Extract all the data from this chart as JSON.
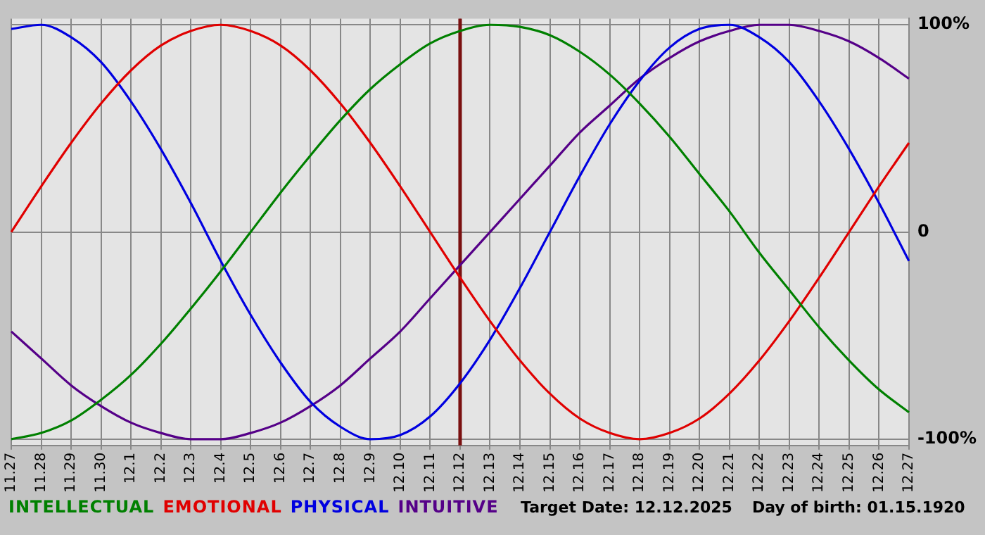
{
  "chart_data": {
    "type": "line",
    "categories": [
      "11.27",
      "11.28",
      "11.29",
      "11.30",
      "12.1",
      "12.2",
      "12.3",
      "12.4",
      "12.5",
      "12.6",
      "12.7",
      "12.8",
      "12.9",
      "12.10",
      "12.11",
      "12.12",
      "12.13",
      "12.14",
      "12.15",
      "12.16",
      "12.17",
      "12.18",
      "12.19",
      "12.20",
      "12.21",
      "12.22",
      "12.23",
      "12.24",
      "12.25",
      "12.26",
      "12.27"
    ],
    "series": [
      {
        "name": "INTELLECTUAL",
        "color": "#008000",
        "values": [
          -100,
          -97,
          -91,
          -81,
          -69,
          -54,
          -37,
          -19,
          0,
          19,
          37,
          54,
          69,
          81,
          91,
          97,
          100,
          99,
          95,
          87,
          76,
          62,
          46,
          28,
          10,
          -10,
          -28,
          -46,
          -62,
          -76,
          -87
        ]
      },
      {
        "name": "EMOTIONAL",
        "color": "#e00000",
        "values": [
          0,
          22,
          43,
          62,
          78,
          90,
          97,
          100,
          97,
          90,
          78,
          62,
          43,
          22,
          0,
          -22,
          -43,
          -62,
          -78,
          -90,
          -97,
          -100,
          -97,
          -90,
          -78,
          -62,
          -43,
          -22,
          0,
          22,
          43
        ]
      },
      {
        "name": "PHYSICAL",
        "color": "#0000e0",
        "values": [
          98,
          100,
          94,
          82,
          63,
          40,
          14,
          -14,
          -40,
          -63,
          -82,
          -94,
          -100,
          -98,
          -89,
          -73,
          -52,
          -27,
          0,
          27,
          52,
          73,
          89,
          98,
          100,
          94,
          82,
          63,
          40,
          14,
          -14
        ]
      },
      {
        "name": "INTUITIVE",
        "color": "#550088",
        "values": [
          -48,
          -61,
          -74,
          -84,
          -92,
          -97,
          -100,
          -100,
          -97,
          -92,
          -84,
          -74,
          -61,
          -48,
          -32,
          -16,
          0,
          16,
          32,
          48,
          61,
          74,
          84,
          92,
          97,
          100,
          100,
          97,
          92,
          84,
          74
        ]
      }
    ],
    "ylim": [
      -103,
      103
    ],
    "yticks": [
      {
        "value": -100,
        "label": "-100%"
      },
      0,
      {
        "value": 100,
        "label": "100%"
      }
    ],
    "grid": true,
    "legend": "bottom left",
    "marker": "none",
    "line_style": "solid",
    "ref_lines": [
      {
        "axis": "x",
        "value": "12.12",
        "color": "#7a1010"
      }
    ],
    "annotations": [
      "Target Date: 12.12.2025",
      "Day of birth: 01.15.1920"
    ]
  }
}
